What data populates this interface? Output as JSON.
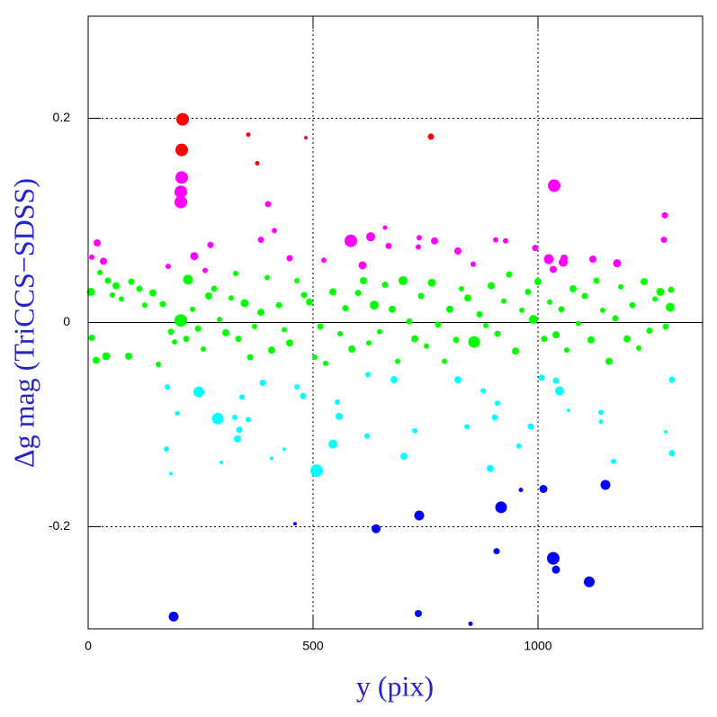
{
  "chart_data": {
    "type": "scatter",
    "xlabel": "y (pix)",
    "ylabel": "Δg mag (TriCCS−SDSS)",
    "xlim": [
      0,
      1366
    ],
    "ylim": [
      -0.3,
      0.3
    ],
    "xticks": [
      0,
      500,
      1000
    ],
    "yticks": [
      -0.2,
      0,
      0.2
    ],
    "grid": true,
    "series": [
      {
        "color": "#ff0000",
        "x": [
          210,
          208,
          356,
          376,
          484,
          762
        ],
        "values": [
          0.199,
          0.169,
          0.184,
          0.156,
          0.181,
          0.182
        ],
        "sizes": [
          7,
          7,
          2.5,
          2.5,
          2,
          3.5
        ]
      },
      {
        "color": "#ff00ff",
        "x": [
          208,
          206,
          206,
          1036,
          584,
          20,
          8,
          34,
          272,
          178,
          236,
          260,
          400,
          414,
          384,
          448,
          524,
          628,
          660,
          668,
          736,
          734,
          770,
          822,
          856,
          906,
          928,
          994,
          1024,
          1034,
          1056,
          1058,
          1122,
          1176,
          1282,
          1280,
          610
        ],
        "values": [
          0.142,
          0.128,
          0.118,
          0.134,
          0.08,
          0.078,
          0.064,
          0.06,
          0.076,
          0.055,
          0.065,
          0.051,
          0.116,
          0.09,
          0.081,
          0.063,
          0.061,
          0.084,
          0.093,
          0.075,
          0.083,
          0.074,
          0.08,
          0.07,
          0.057,
          0.081,
          0.08,
          0.073,
          0.062,
          0.052,
          0.059,
          0.063,
          0.062,
          0.058,
          0.105,
          0.081,
          0.056
        ],
        "sizes": [
          7,
          7,
          7,
          7,
          7,
          4,
          3,
          4,
          3.5,
          3,
          4.5,
          3,
          3.5,
          3,
          3.5,
          3.5,
          3,
          5,
          2.5,
          3.5,
          3,
          3,
          4,
          4,
          3,
          3,
          3,
          3.5,
          5.5,
          4,
          5,
          4,
          4,
          4.5,
          3.5,
          3.5,
          4.5
        ]
      },
      {
        "color": "#00ff00",
        "x": [
          6,
          8,
          18,
          26,
          44,
          40,
          54,
          62,
          74,
          96,
          90,
          114,
          126,
          144,
          156,
          166,
          184,
          192,
          206,
          218,
          222,
          232,
          244,
          256,
          268,
          280,
          292,
          306,
          318,
          328,
          334,
          348,
          360,
          370,
          384,
          398,
          408,
          424,
          436,
          448,
          464,
          480,
          492,
          504,
          516,
          528,
          544,
          560,
          572,
          586,
          600,
          612,
          624,
          636,
          648,
          660,
          676,
          688,
          700,
          714,
          726,
          740,
          752,
          764,
          778,
          792,
          804,
          818,
          830,
          844,
          858,
          870,
          884,
          896,
          910,
          924,
          936,
          950,
          964,
          978,
          990,
          1000,
          1014,
          1026,
          1040,
          1052,
          1064,
          1078,
          1090,
          1104,
          1118,
          1130,
          1144,
          1158,
          1172,
          1184,
          1198,
          1210,
          1224,
          1236,
          1248,
          1260,
          1272,
          1284,
          1294,
          1296
        ],
        "values": [
          0.03,
          -0.015,
          -0.037,
          0.049,
          0.041,
          -0.033,
          0.027,
          0.036,
          0.023,
          0.04,
          -0.033,
          0.033,
          0.017,
          0.029,
          -0.041,
          0.018,
          -0.009,
          -0.019,
          0.002,
          -0.016,
          0.042,
          0.013,
          -0.006,
          -0.026,
          0.026,
          0.033,
          0.003,
          -0.01,
          0.024,
          0.048,
          -0.016,
          0.019,
          -0.034,
          -0.004,
          0.01,
          0.044,
          -0.027,
          0.017,
          -0.007,
          -0.02,
          0.041,
          0.027,
          0.02,
          -0.034,
          -0.004,
          -0.04,
          0.03,
          -0.011,
          0.014,
          -0.026,
          0.029,
          0.041,
          -0.02,
          0.017,
          -0.009,
          0.037,
          0.013,
          -0.038,
          0.041,
          0.001,
          -0.016,
          0.026,
          -0.023,
          0.039,
          -0.002,
          -0.038,
          0.013,
          -0.017,
          0.033,
          0.024,
          -0.019,
          0.008,
          -0.003,
          0.036,
          -0.011,
          0.021,
          0.047,
          -0.028,
          0.012,
          0.03,
          0.003,
          0.04,
          -0.016,
          0.02,
          -0.012,
          0.013,
          -0.027,
          0.033,
          -0.001,
          0.026,
          -0.017,
          0.041,
          0.012,
          -0.038,
          0.004,
          0.035,
          -0.016,
          0.017,
          -0.025,
          0.04,
          -0.008,
          0.023,
          0.03,
          -0.004,
          0.015,
          0.032
        ],
        "sizes": [
          4.5,
          3.5,
          4,
          3,
          3.5,
          4.5,
          3,
          4,
          3,
          3.5,
          4,
          3.5,
          3,
          4,
          3,
          3.5,
          3.5,
          3,
          7,
          3.5,
          5.5,
          3,
          3.5,
          3,
          4,
          3.5,
          3,
          4,
          3,
          3,
          3.5,
          4.5,
          3.5,
          3,
          4,
          3,
          4,
          3.5,
          3,
          4,
          3,
          3.5,
          4,
          3,
          3.5,
          3,
          4,
          3,
          3.5,
          4,
          3.5,
          4,
          3,
          5,
          3,
          3.5,
          4,
          3,
          5,
          3.5,
          4,
          3.5,
          3,
          4.5,
          3.5,
          3,
          4,
          3.5,
          3,
          4,
          6.5,
          3.5,
          3,
          4,
          3.5,
          3,
          3.5,
          4,
          3,
          3.5,
          5,
          4,
          3.5,
          3,
          4,
          3.5,
          3,
          4,
          3,
          3.5,
          4,
          3.5,
          3,
          4,
          3.5,
          3,
          4,
          3.5,
          3,
          4,
          3.5,
          3,
          4.5,
          3.5,
          5,
          3.5
        ]
      },
      {
        "color": "#00ffff",
        "x": [
          176,
          246,
          198,
          288,
          174,
          184,
          342,
          326,
          336,
          356,
          332,
          296,
          388,
          408,
          436,
          478,
          508,
          544,
          558,
          554,
          620,
          622,
          680,
          702,
          726,
          822,
          842,
          894,
          910,
          904,
          958,
          984,
          1008,
          1040,
          1048,
          1068,
          1140,
          1140,
          1168,
          1298,
          1298,
          1284,
          464,
          878
        ],
        "values": [
          -0.063,
          -0.068,
          -0.089,
          -0.094,
          -0.124,
          -0.148,
          -0.073,
          -0.093,
          -0.105,
          -0.095,
          -0.114,
          -0.137,
          -0.059,
          -0.133,
          -0.124,
          -0.072,
          -0.145,
          -0.119,
          -0.092,
          -0.078,
          -0.111,
          -0.051,
          -0.056,
          -0.131,
          -0.106,
          -0.056,
          -0.102,
          -0.143,
          -0.079,
          -0.093,
          -0.121,
          -0.102,
          -0.054,
          -0.057,
          -0.067,
          -0.086,
          -0.088,
          -0.097,
          -0.136,
          -0.056,
          -0.128,
          -0.107,
          -0.063,
          -0.067
        ],
        "sizes": [
          3,
          6,
          2.5,
          6.5,
          3,
          2,
          3,
          3,
          3.5,
          3,
          4,
          2,
          3.5,
          2,
          2,
          3.5,
          7,
          5,
          4,
          3,
          3,
          3,
          4,
          4,
          3,
          4,
          3,
          4,
          3,
          3.5,
          3,
          3.5,
          3.5,
          3.5,
          5,
          2,
          3,
          2.5,
          3,
          3.5,
          3.5,
          2,
          3,
          3
        ]
      },
      {
        "color": "#0000ff",
        "x": [
          190,
          460,
          640,
          736,
          734,
          850,
          918,
          908,
          962,
          1012,
          1034,
          1040,
          1114,
          1150
        ],
        "values": [
          -0.288,
          -0.197,
          -0.202,
          -0.189,
          -0.285,
          -0.295,
          -0.181,
          -0.224,
          -0.164,
          -0.163,
          -0.231,
          -0.242,
          -0.254,
          -0.159
        ],
        "sizes": [
          5.5,
          2,
          5,
          5.5,
          4,
          2.5,
          6.5,
          3.5,
          2.5,
          4.5,
          7,
          4.5,
          6,
          5.5
        ]
      }
    ]
  }
}
